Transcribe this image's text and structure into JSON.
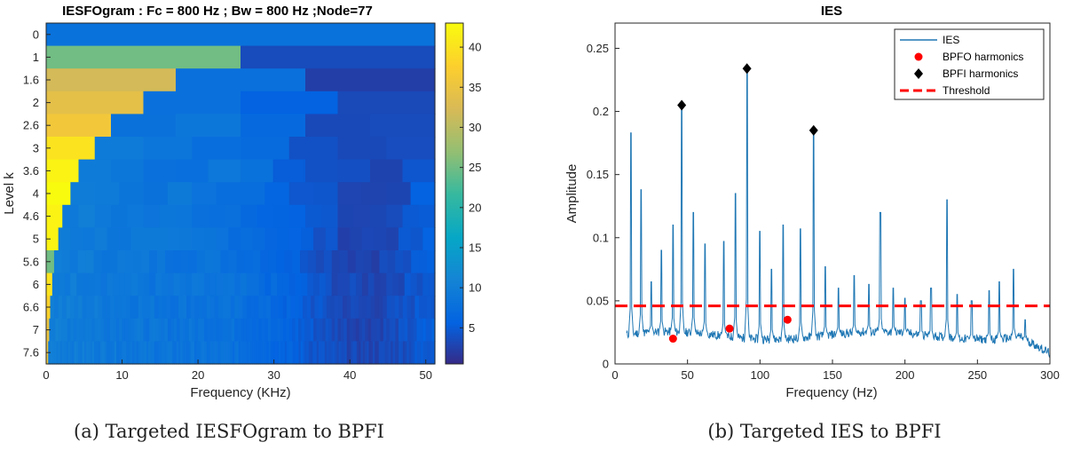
{
  "chart_data": [
    {
      "type": "heatmap",
      "title": "IESFOgram : Fc = 800 Hz ; Bw = 800 Hz ;Node=77",
      "xlabel": "Frequency (KHz)",
      "ylabel": "Level k",
      "xlim": [
        0,
        51.2
      ],
      "xticks": [
        "0",
        "10",
        "20",
        "30",
        "40",
        "50"
      ],
      "xtick_values": [
        0,
        10,
        20,
        30,
        40,
        50
      ],
      "levels": [
        "0",
        "1",
        "1.6",
        "2",
        "2.6",
        "3",
        "3.6",
        "4",
        "4.6",
        "5",
        "5.6",
        "6",
        "6.6",
        "7",
        "7.6"
      ],
      "colorbar_ticks": [
        "5",
        "10",
        "15",
        "20",
        "25",
        "30",
        "35",
        "40"
      ],
      "colorbar_tick_values": [
        5,
        10,
        15,
        20,
        25,
        30,
        35,
        40
      ],
      "colorbar_range": [
        0.5,
        43
      ],
      "first_cell_values": [
        8,
        25,
        32,
        34,
        36,
        40,
        42,
        43,
        42,
        42,
        25,
        40,
        38,
        35,
        35
      ],
      "caption": "(a) Targeted IESFOgram to BPFI"
    },
    {
      "type": "line",
      "title": "IES",
      "xlabel": "Frequency (Hz)",
      "ylabel": "Amplitude",
      "xlim": [
        0,
        300
      ],
      "ylim": [
        0,
        0.27
      ],
      "xticks": [
        "0",
        "50",
        "100",
        "150",
        "200",
        "250",
        "300"
      ],
      "xtick_values": [
        0,
        50,
        100,
        150,
        200,
        250,
        300
      ],
      "yticks": [
        "0",
        "0.05",
        "0.1",
        "0.15",
        "0.2",
        "0.25"
      ],
      "ytick_values": [
        0,
        0.05,
        0.1,
        0.15,
        0.2,
        0.25
      ],
      "series": [
        {
          "name": "IES",
          "peaks": [
            {
              "x": 11,
              "y": 0.183
            },
            {
              "x": 18,
              "y": 0.138
            },
            {
              "x": 25,
              "y": 0.065
            },
            {
              "x": 32,
              "y": 0.09
            },
            {
              "x": 40,
              "y": 0.11
            },
            {
              "x": 46,
              "y": 0.205
            },
            {
              "x": 54,
              "y": 0.12
            },
            {
              "x": 62,
              "y": 0.095
            },
            {
              "x": 75,
              "y": 0.097
            },
            {
              "x": 83,
              "y": 0.135
            },
            {
              "x": 91,
              "y": 0.234
            },
            {
              "x": 100,
              "y": 0.105
            },
            {
              "x": 108,
              "y": 0.075
            },
            {
              "x": 116,
              "y": 0.11
            },
            {
              "x": 128,
              "y": 0.107
            },
            {
              "x": 137,
              "y": 0.185
            },
            {
              "x": 145,
              "y": 0.077
            },
            {
              "x": 154,
              "y": 0.06
            },
            {
              "x": 165,
              "y": 0.07
            },
            {
              "x": 175,
              "y": 0.063
            },
            {
              "x": 183,
              "y": 0.12
            },
            {
              "x": 192,
              "y": 0.06
            },
            {
              "x": 200,
              "y": 0.052
            },
            {
              "x": 211,
              "y": 0.05
            },
            {
              "x": 218,
              "y": 0.06
            },
            {
              "x": 229,
              "y": 0.13
            },
            {
              "x": 236,
              "y": 0.055
            },
            {
              "x": 246,
              "y": 0.05
            },
            {
              "x": 258,
              "y": 0.058
            },
            {
              "x": 265,
              "y": 0.065
            },
            {
              "x": 275,
              "y": 0.075
            },
            {
              "x": 283,
              "y": 0.035
            }
          ]
        },
        {
          "name": "BPFO harmonics",
          "points": [
            [
              40,
              0.02
            ],
            [
              79,
              0.028
            ],
            [
              119,
              0.035
            ]
          ]
        },
        {
          "name": "BPFI harmonics",
          "points": [
            [
              46,
              0.205
            ],
            [
              91,
              0.234
            ],
            [
              137,
              0.185
            ]
          ]
        },
        {
          "name": "Threshold",
          "value": 0.046
        }
      ],
      "legend": [
        "IES",
        "BPFO harmonics",
        "BPFI harmonics",
        "Threshold"
      ],
      "legend_position": "top-right",
      "caption": "(b) Targeted IES to BPFI"
    }
  ],
  "colors": {
    "ies_line": "#1f77b4",
    "bpfo_marker": "#ff0000",
    "bpfi_marker": "#000000",
    "threshold": "#ff0000"
  }
}
